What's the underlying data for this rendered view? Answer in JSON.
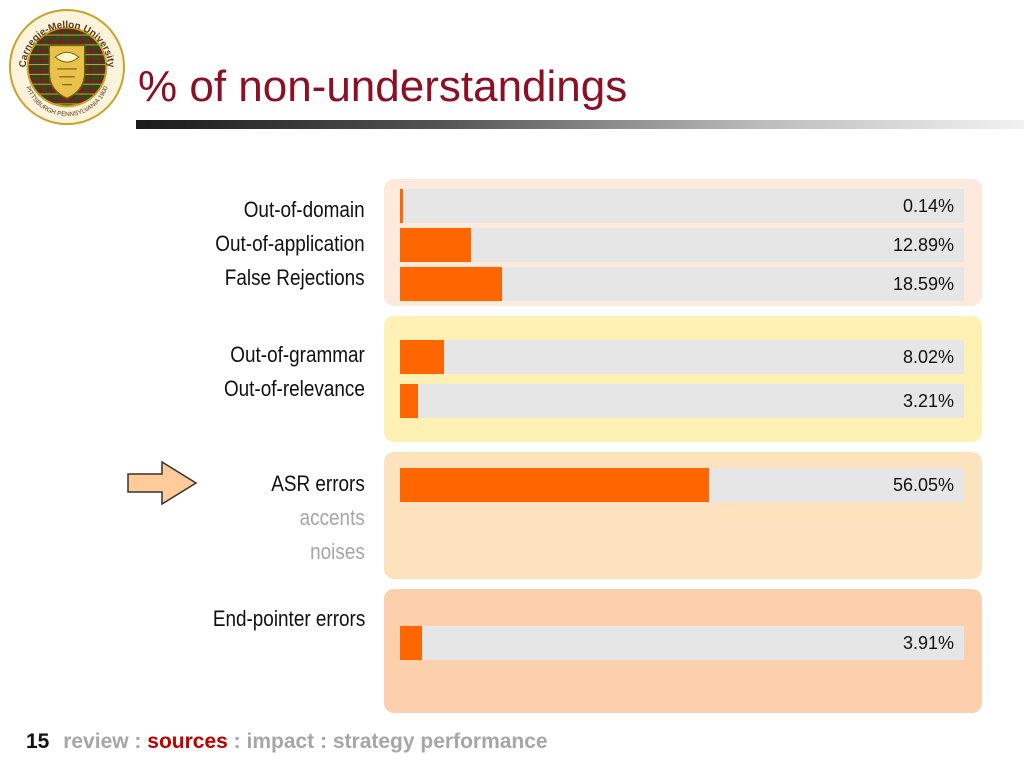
{
  "header": {
    "title": "% of non-understandings"
  },
  "logo": {
    "text_top": "Carnegie-Mellon University",
    "text_bottom": "PITTSBURGH PENNSYLVANIA 1900"
  },
  "groups": [
    {
      "labels": [
        {
          "text": "Out-of-domain",
          "style": "main"
        },
        {
          "text": "Out-of-application",
          "style": "main"
        },
        {
          "text": "False Rejections",
          "style": "main"
        }
      ],
      "color": "#fdeadc"
    },
    {
      "labels": [
        {
          "text": "Out-of-grammar",
          "style": "main"
        },
        {
          "text": "Out-of-relevance",
          "style": "main"
        }
      ],
      "color": "#fff0b3"
    },
    {
      "labels": [
        {
          "text": "ASR errors",
          "style": "main"
        },
        {
          "text": "accents",
          "style": "sub"
        },
        {
          "text": "noises",
          "style": "sub"
        }
      ],
      "color": "#fde3bd"
    },
    {
      "labels": [
        {
          "text": "End-pointer errors",
          "style": "main"
        }
      ],
      "color": "#fdd0ad"
    }
  ],
  "chart_data": {
    "type": "bar",
    "orientation": "horizontal",
    "title": "% of non-understandings",
    "categories": [
      "Out-of-domain",
      "Out-of-application",
      "False Rejections",
      "Out-of-grammar",
      "Out-of-relevance",
      "ASR errors",
      "End-pointer errors"
    ],
    "values": [
      0.14,
      12.89,
      18.59,
      8.02,
      3.21,
      56.05,
      3.91
    ],
    "value_labels": [
      "0.14%",
      "12.89%",
      "18.59%",
      "8.02%",
      "3.21%",
      "56.05%",
      "3.91%"
    ],
    "xlim": [
      0,
      100
    ],
    "bar_color": "#ff6600",
    "track_color": "#e6e6e6",
    "grid": false
  },
  "footer": {
    "page_number": "15",
    "items": [
      {
        "text": "review",
        "active": false
      },
      {
        "text": " : ",
        "active": false
      },
      {
        "text": "sources",
        "active": true
      },
      {
        "text": " : ",
        "active": false
      },
      {
        "text": "impact",
        "active": false
      },
      {
        "text": " : ",
        "active": false
      },
      {
        "text": "strategy",
        "active": false
      },
      {
        "text": " ",
        "active": false
      },
      {
        "text": "performance",
        "active": false
      }
    ]
  },
  "colors": {
    "title": "#8c0f24",
    "active_nav": "#c00000",
    "muted": "#a6a6a6",
    "arrow_fill": "#ffcc99"
  }
}
